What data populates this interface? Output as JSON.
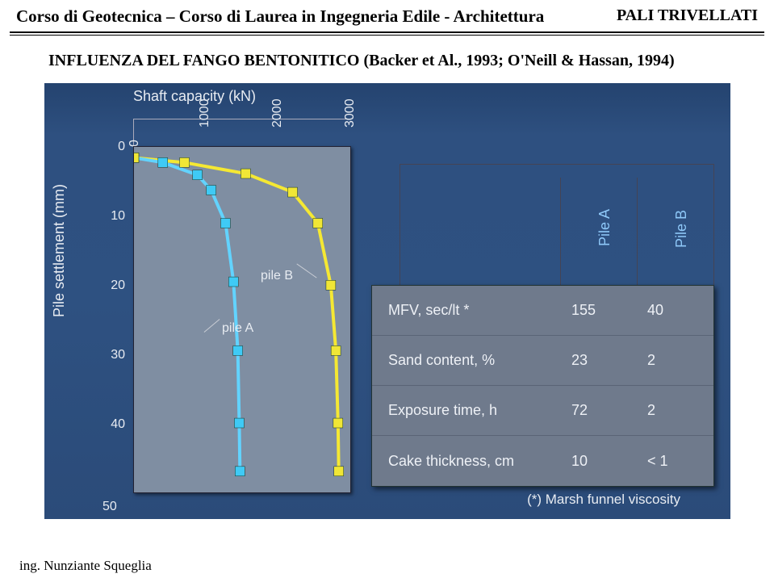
{
  "header": {
    "left": "Corso di Geotecnica – Corso di Laurea in Ingegneria Edile - Architettura",
    "right": "PALI TRIVELLATI"
  },
  "subtitle": "INFLUENZA DEL FANGO BENTONITICO (Backer et Al., 1993; O'Neill & Hassan, 1994)",
  "chart": {
    "x_label": "Shaft capacity (kN)",
    "y_label": "Pile settlement (mm)",
    "x_ticks": [
      "0",
      "1000",
      "2000",
      "3000"
    ],
    "y_ticks": [
      "0",
      "10",
      "20",
      "30",
      "40"
    ],
    "y_bottom": "50",
    "curve_a_label": "pile A",
    "curve_b_label": "pile B",
    "colors": {
      "bg": "#7f8ea2",
      "pile_a": "#62d3ff",
      "pile_b": "#f5e833",
      "marker_a": "#3fcaf5",
      "marker_b": "#f0e636"
    },
    "pile_a": {
      "x": [
        0,
        400,
        880,
        1070,
        1270,
        1380,
        1440,
        1460,
        1470
      ],
      "y": [
        1.5,
        2.2,
        4.0,
        6.2,
        11.0,
        19.5,
        29.5,
        40.0,
        47.0
      ]
    },
    "pile_b": {
      "x": [
        0,
        700,
        1550,
        2200,
        2550,
        2730,
        2800,
        2830,
        2840
      ],
      "y": [
        1.5,
        2.2,
        3.8,
        6.5,
        11.0,
        20.0,
        29.5,
        40.0,
        47.0
      ]
    }
  },
  "legend": {
    "col_a": "Pile A",
    "col_b": "Pile B",
    "rows": [
      {
        "label": "MFV, sec/lt *",
        "a": "155",
        "b": "40"
      },
      {
        "label": "Sand content, %",
        "a": "23",
        "b": "2"
      },
      {
        "label": "Exposure time, h",
        "a": "72",
        "b": "2"
      },
      {
        "label": "Cake thickness, cm",
        "a": "10",
        "b": "< 1"
      }
    ],
    "footnote": "(*) Marsh funnel viscosity"
  },
  "footer": "ing. Nunziante Squeglia"
}
